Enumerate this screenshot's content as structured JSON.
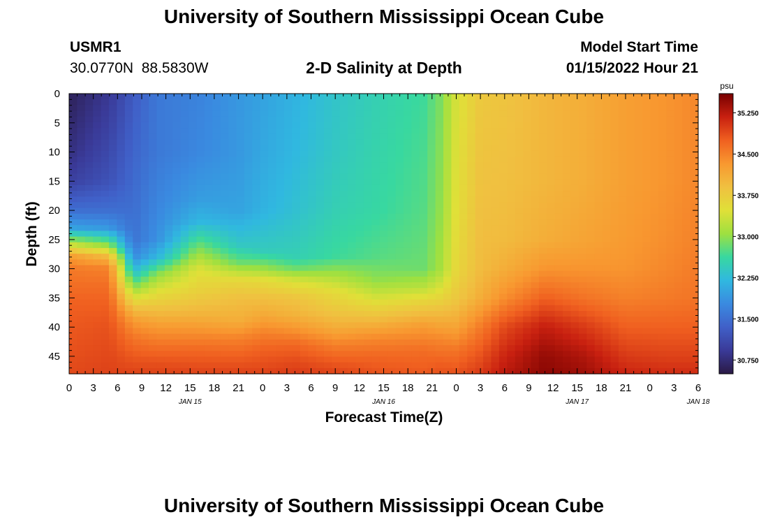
{
  "header": {
    "title": "University of Southern Mississippi Ocean Cube",
    "station_id": "USMR1",
    "coordinates": "30.0770N  88.5830W",
    "subtitle": "2-D Salinity at Depth",
    "model_start_label": "Model Start Time",
    "model_start_value": "01/15/2022 Hour 21"
  },
  "footer": {
    "title": "University of Southern Mississippi Ocean Cube"
  },
  "chart_data": {
    "type": "heatmap",
    "title": "2-D Salinity at Depth",
    "xlabel": "Forecast Time(Z)",
    "ylabel": "Depth (ft)",
    "x_tick_labels": [
      "0",
      "3",
      "6",
      "9",
      "12",
      "15",
      "18",
      "21",
      "0",
      "3",
      "6",
      "9",
      "12",
      "15",
      "18",
      "21",
      "0",
      "3",
      "6",
      "9",
      "12",
      "15",
      "18",
      "21",
      "0",
      "3",
      "6"
    ],
    "date_labels": [
      {
        "label": "JAN 15",
        "hour_index": 15
      },
      {
        "label": "JAN 16",
        "hour_index": 39
      },
      {
        "label": "JAN 17",
        "hour_index": 63
      },
      {
        "label": "JAN 18",
        "hour_index": 78
      }
    ],
    "hours_range": [
      0,
      78
    ],
    "y_ticks": [
      0,
      5,
      10,
      15,
      20,
      25,
      30,
      35,
      40,
      45
    ],
    "ylim": [
      0,
      48
    ],
    "colorbar": {
      "unit": "psu",
      "ticks": [
        "35.250",
        "34.500",
        "33.750",
        "33.000",
        "32.250",
        "31.500",
        "30.750"
      ],
      "range": [
        30.5,
        35.6
      ]
    },
    "colormap": [
      "#2a1a45",
      "#3a3a98",
      "#4060c8",
      "#3a8ae0",
      "#30b8e0",
      "#38d8a0",
      "#9ee040",
      "#e0e038",
      "#f0c040",
      "#f89830",
      "#f06020",
      "#c82010",
      "#780000"
    ],
    "depth_profiles": [
      {
        "hour": 0,
        "depth": [
          0,
          5,
          10,
          15,
          20,
          23,
          26,
          28,
          30,
          33,
          36,
          40,
          44,
          48
        ],
        "salinity": [
          30.6,
          30.7,
          30.8,
          31.0,
          31.5,
          32.0,
          33.4,
          34.3,
          34.55,
          34.65,
          34.75,
          34.8,
          34.85,
          34.9
        ]
      },
      {
        "hour": 5,
        "depth": [
          0,
          5,
          10,
          15,
          20,
          23,
          26,
          28,
          30,
          33,
          36,
          40,
          44,
          48
        ],
        "salinity": [
          30.9,
          31.0,
          31.1,
          31.2,
          31.5,
          31.9,
          33.0,
          34.0,
          34.5,
          34.65,
          34.75,
          34.85,
          34.9,
          34.95
        ]
      },
      {
        "hour": 8,
        "depth": [
          0,
          10,
          20,
          25,
          28,
          31,
          34,
          37,
          39,
          42,
          45,
          48
        ],
        "salinity": [
          31.3,
          31.4,
          31.5,
          31.55,
          31.8,
          32.4,
          33.2,
          33.95,
          34.3,
          34.6,
          34.8,
          34.95
        ]
      },
      {
        "hour": 11,
        "depth": [
          0,
          10,
          20,
          25,
          28,
          31,
          34,
          37,
          40,
          43,
          46,
          48
        ],
        "salinity": [
          31.6,
          31.6,
          31.75,
          31.85,
          32.2,
          33.0,
          33.5,
          33.9,
          34.3,
          34.6,
          34.85,
          34.95
        ]
      },
      {
        "hour": 16,
        "depth": [
          0,
          10,
          18,
          22,
          26,
          30,
          34,
          38,
          41,
          44,
          48
        ],
        "salinity": [
          31.7,
          31.75,
          31.95,
          32.2,
          32.85,
          33.45,
          33.7,
          34.05,
          34.4,
          34.7,
          34.95
        ]
      },
      {
        "hour": 21,
        "depth": [
          0,
          10,
          20,
          26,
          29,
          32,
          35,
          39,
          42,
          45,
          48
        ],
        "salinity": [
          31.9,
          31.9,
          32.0,
          32.4,
          32.85,
          33.6,
          33.9,
          34.1,
          34.5,
          34.75,
          34.95
        ]
      },
      {
        "hour": 24,
        "depth": [
          0,
          10,
          20,
          27,
          30,
          32,
          35,
          38,
          41,
          44,
          48
        ],
        "salinity": [
          32.0,
          32.05,
          32.15,
          32.45,
          33.05,
          33.55,
          33.9,
          34.15,
          34.5,
          34.75,
          34.95
        ]
      },
      {
        "hour": 28,
        "depth": [
          0,
          10,
          20,
          28,
          30,
          32,
          35,
          38,
          40,
          43,
          46,
          48
        ],
        "salinity": [
          32.15,
          32.2,
          32.3,
          32.5,
          32.85,
          33.4,
          33.85,
          34.05,
          34.3,
          34.7,
          34.9,
          35.0
        ]
      },
      {
        "hour": 33,
        "depth": [
          0,
          10,
          20,
          28,
          31,
          34,
          37,
          40,
          43,
          46,
          48
        ],
        "salinity": [
          32.35,
          32.4,
          32.5,
          32.65,
          33.1,
          33.55,
          33.8,
          34.1,
          34.5,
          34.8,
          34.95
        ]
      },
      {
        "hour": 38,
        "depth": [
          0,
          10,
          20,
          28,
          32,
          35,
          38,
          42,
          45,
          48
        ],
        "salinity": [
          32.5,
          32.55,
          32.6,
          32.75,
          33.0,
          33.4,
          33.85,
          34.45,
          34.7,
          34.85
        ]
      },
      {
        "hour": 44,
        "depth": [
          0,
          10,
          20,
          30,
          33,
          36,
          40,
          44,
          48
        ],
        "salinity": [
          32.65,
          32.7,
          32.75,
          32.85,
          33.2,
          33.7,
          34.3,
          34.65,
          34.8
        ]
      },
      {
        "hour": 46,
        "depth": [
          0,
          10,
          20,
          30,
          34,
          38,
          42,
          46,
          48
        ],
        "salinity": [
          32.9,
          32.95,
          33.0,
          33.1,
          33.5,
          34.0,
          34.45,
          34.75,
          34.85
        ]
      },
      {
        "hour": 48,
        "depth": [
          0,
          10,
          20,
          30,
          35,
          40,
          44,
          48
        ],
        "salinity": [
          33.4,
          33.45,
          33.5,
          33.6,
          33.8,
          34.2,
          34.6,
          34.85
        ]
      },
      {
        "hour": 51,
        "depth": [
          0,
          10,
          20,
          30,
          35,
          40,
          45,
          48
        ],
        "salinity": [
          33.8,
          33.85,
          33.9,
          33.95,
          34.1,
          34.55,
          34.85,
          35.0
        ]
      },
      {
        "hour": 54,
        "depth": [
          0,
          15,
          25,
          30,
          35,
          40,
          45,
          48
        ],
        "salinity": [
          33.85,
          33.9,
          33.95,
          34.1,
          34.4,
          34.9,
          35.15,
          35.25
        ]
      },
      {
        "hour": 59,
        "depth": [
          0,
          15,
          25,
          30,
          35,
          40,
          45,
          48
        ],
        "salinity": [
          34.0,
          34.0,
          34.1,
          34.35,
          34.75,
          35.2,
          35.45,
          35.5
        ]
      },
      {
        "hour": 64,
        "depth": [
          0,
          15,
          25,
          30,
          35,
          40,
          45,
          48
        ],
        "salinity": [
          34.1,
          34.1,
          34.2,
          34.35,
          34.6,
          35.0,
          35.3,
          35.4
        ]
      },
      {
        "hour": 69,
        "depth": [
          0,
          15,
          25,
          30,
          35,
          40,
          45,
          48
        ],
        "salinity": [
          34.25,
          34.25,
          34.3,
          34.35,
          34.5,
          34.75,
          35.0,
          35.15
        ]
      },
      {
        "hour": 74,
        "depth": [
          0,
          15,
          25,
          30,
          35,
          40,
          45,
          48
        ],
        "salinity": [
          34.35,
          34.35,
          34.4,
          34.45,
          34.55,
          34.75,
          34.95,
          35.1
        ]
      },
      {
        "hour": 78,
        "depth": [
          0,
          15,
          25,
          30,
          35,
          40,
          45,
          48
        ],
        "salinity": [
          34.45,
          34.45,
          34.5,
          34.55,
          34.6,
          34.75,
          34.95,
          35.1
        ]
      }
    ]
  }
}
